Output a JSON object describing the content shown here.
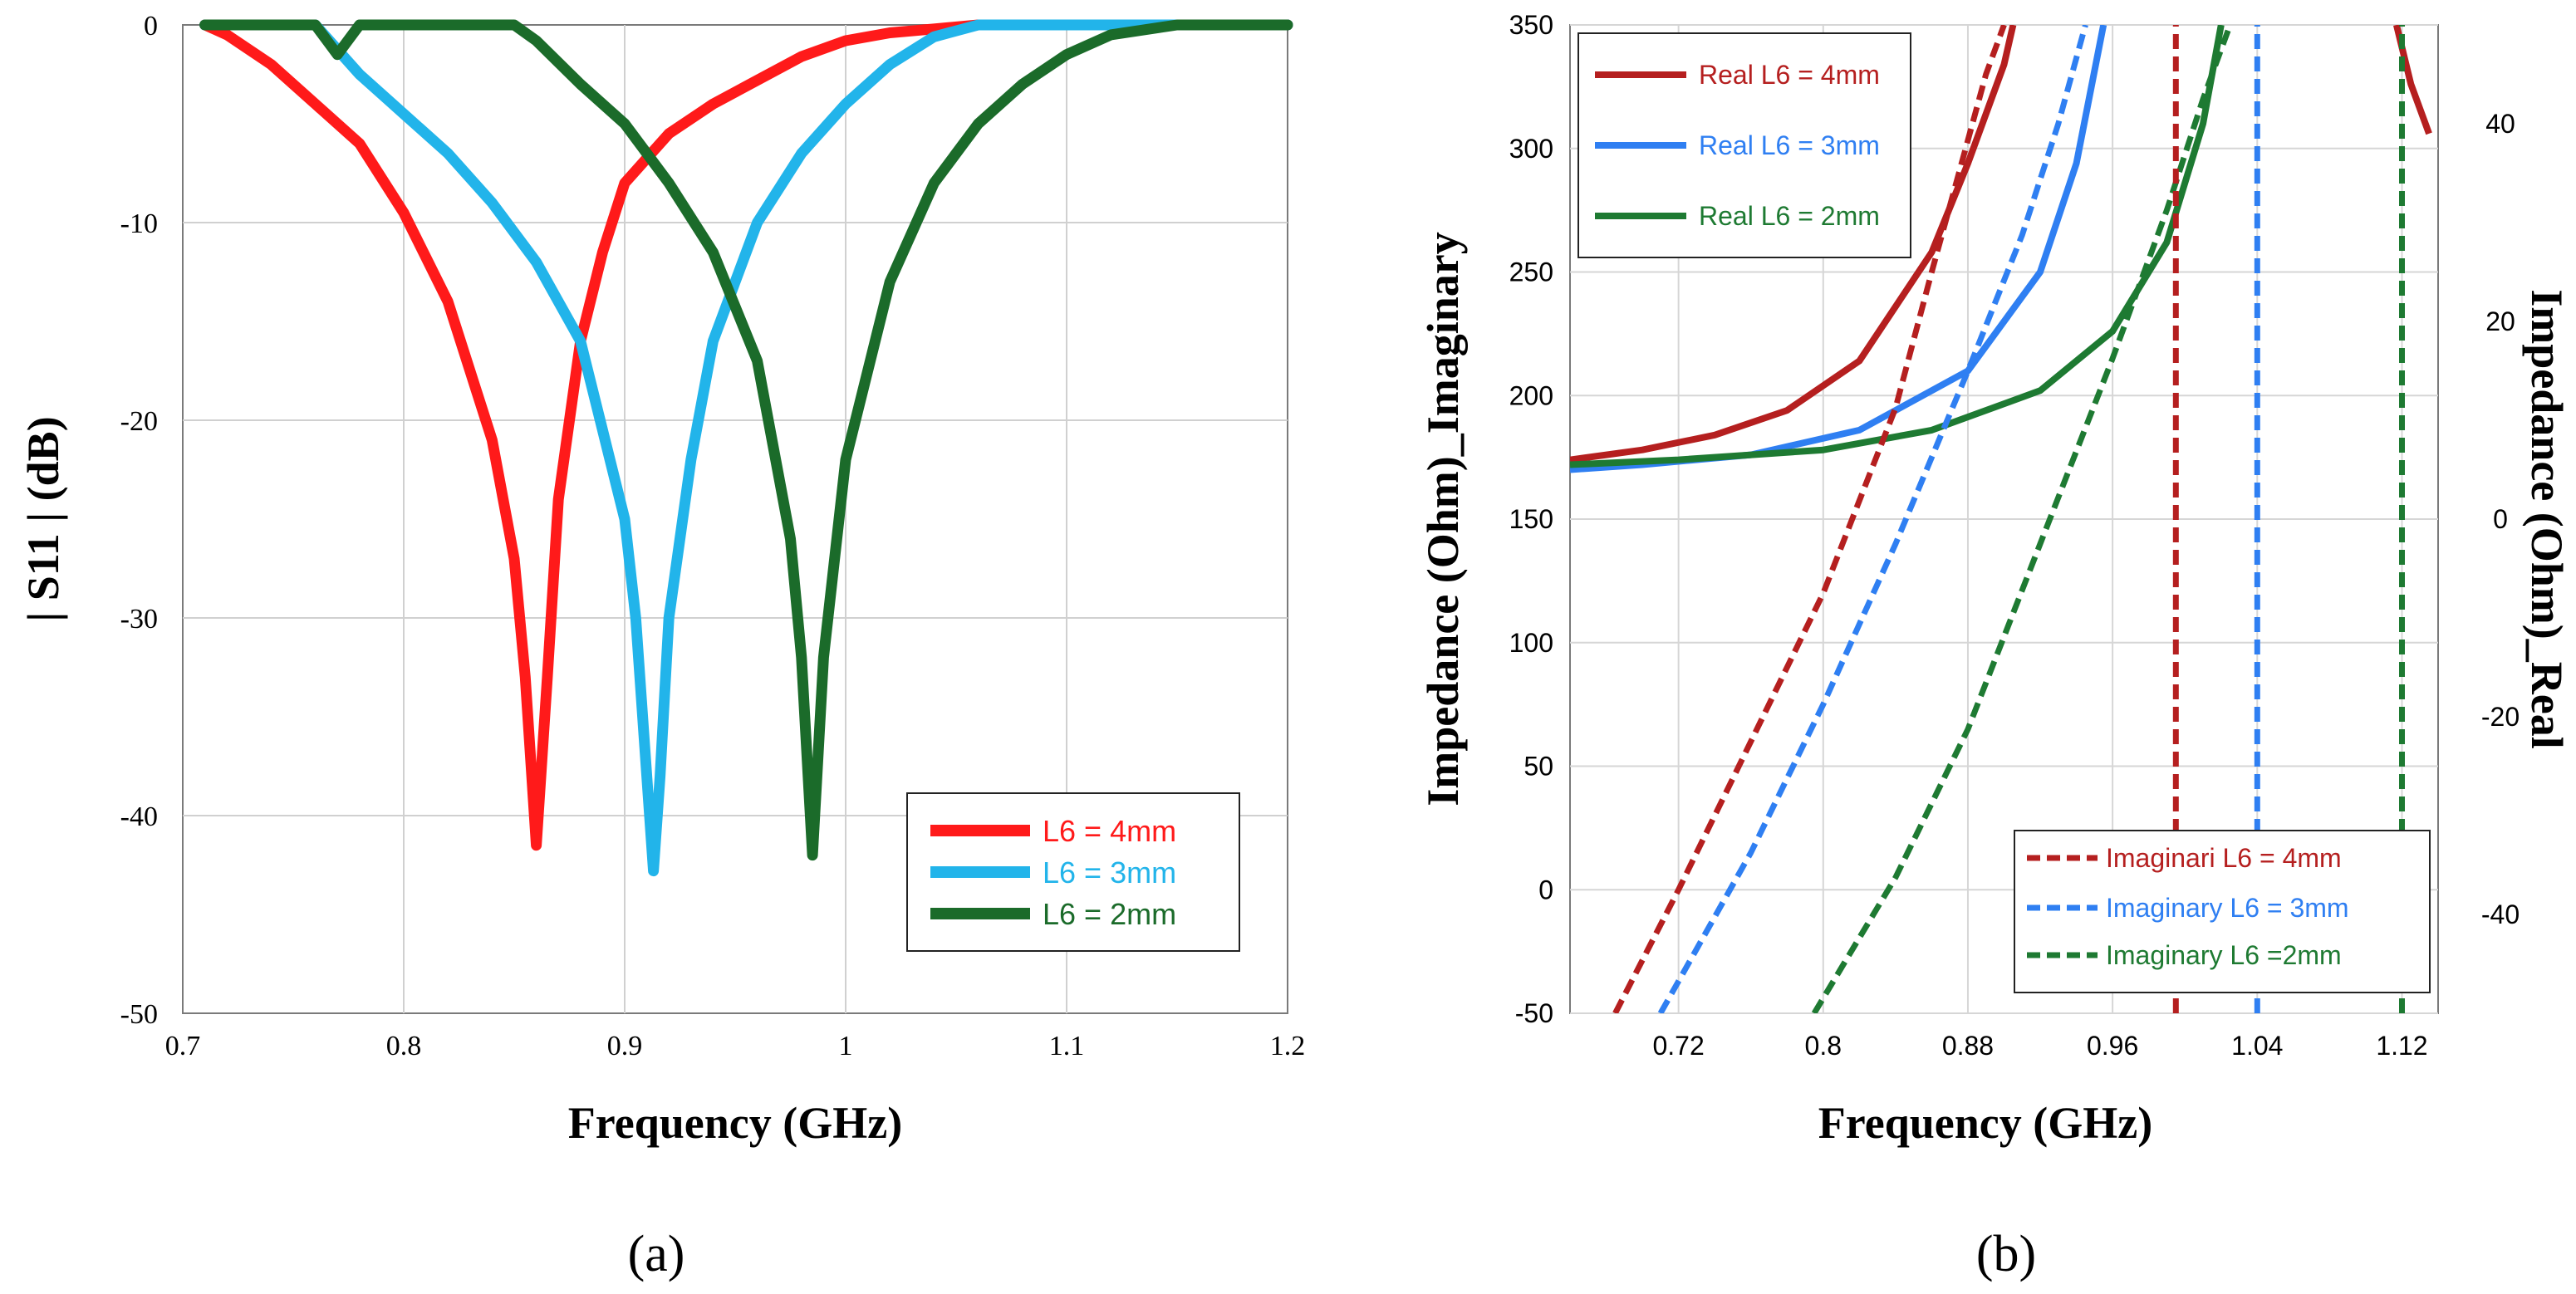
{
  "colors": {
    "red": "#ff1a1a",
    "lightblue": "#22b4ea",
    "darkgreen": "#1b6b2a",
    "darkred": "#b51f1f",
    "blue": "#2f7ff2",
    "green": "#1e7a32"
  },
  "chart_data": [
    {
      "type": "line",
      "panel_label": "(a)",
      "xlabel": "Frequency (GHz)",
      "ylabel": "| S11 | (dB)",
      "xlim": [
        0.7,
        1.2
      ],
      "ylim": [
        -50,
        0
      ],
      "xticks": [
        "0.7",
        "0.8",
        "0.9",
        "1",
        "1.1",
        "1.2"
      ],
      "yticks": [
        "0",
        "-10",
        "-20",
        "-30",
        "-40",
        "-50"
      ],
      "grid": true,
      "legend_position": "bottom-right",
      "series": [
        {
          "name": "L6 = 4mm",
          "color": "#ff1a1a",
          "x": [
            0.71,
            0.72,
            0.74,
            0.76,
            0.78,
            0.8,
            0.82,
            0.84,
            0.85,
            0.855,
            0.86,
            0.865,
            0.87,
            0.88,
            0.89,
            0.9,
            0.92,
            0.94,
            0.96,
            0.98,
            1.0,
            1.02,
            1.04,
            1.06,
            1.1,
            1.2
          ],
          "y": [
            0,
            -0.5,
            -2,
            -4,
            -6,
            -9.5,
            -14,
            -21,
            -27,
            -33,
            -41.5,
            -33,
            -24,
            -16,
            -11.5,
            -8,
            -5.5,
            -4,
            -2.8,
            -1.6,
            -0.8,
            -0.4,
            -0.2,
            0,
            0,
            0
          ]
        },
        {
          "name": "L6 = 3mm",
          "color": "#22b4ea",
          "x": [
            0.71,
            0.76,
            0.78,
            0.8,
            0.82,
            0.84,
            0.86,
            0.88,
            0.9,
            0.905,
            0.91,
            0.913,
            0.916,
            0.92,
            0.93,
            0.94,
            0.96,
            0.98,
            1.0,
            1.02,
            1.04,
            1.06,
            1.1,
            1.2
          ],
          "y": [
            0,
            0,
            -2.5,
            -4.5,
            -6.5,
            -9,
            -12,
            -16,
            -25,
            -30,
            -38,
            -42.8,
            -38,
            -30,
            -22,
            -16,
            -10,
            -6.5,
            -4,
            -2,
            -0.6,
            0,
            0,
            0
          ]
        },
        {
          "name": "L6 = 2mm",
          "color": "#1b6b2a",
          "x": [
            0.71,
            0.76,
            0.77,
            0.78,
            0.8,
            0.85,
            0.86,
            0.88,
            0.9,
            0.92,
            0.94,
            0.96,
            0.975,
            0.98,
            0.985,
            0.99,
            1.0,
            1.02,
            1.04,
            1.06,
            1.08,
            1.1,
            1.12,
            1.15,
            1.2
          ],
          "y": [
            0,
            0,
            -1.5,
            0,
            0,
            0,
            -0.8,
            -3,
            -5,
            -8,
            -11.5,
            -17,
            -26,
            -32,
            -42,
            -32,
            -22,
            -13,
            -8,
            -5,
            -3,
            -1.5,
            -0.5,
            0,
            0
          ]
        }
      ]
    },
    {
      "type": "line",
      "panel_label": "(b)",
      "xlabel": "Frequency (GHz)",
      "ylabel": "Impedance (Ohm)_Imaginary",
      "y2label": "Impedance (Ohm)_Real",
      "xlim": [
        0.66,
        1.14
      ],
      "ylim": [
        -50,
        350
      ],
      "y2lim": [
        -50,
        50
      ],
      "xticks": [
        "0.72",
        "0.8",
        "0.88",
        "0.96",
        "1.04",
        "1.12"
      ],
      "yticks": [
        "350",
        "300",
        "250",
        "200",
        "150",
        "100",
        "50",
        "0",
        "-50"
      ],
      "y2ticks": [
        "40",
        "20",
        "0",
        "-20",
        "-40"
      ],
      "grid": true,
      "legend_real_position": "top-left",
      "legend_imag_position": "bottom-right",
      "series": [
        {
          "name": "Real L6 = 4mm",
          "axis": "right",
          "dash": false,
          "color": "#b51f1f",
          "x": [
            0.66,
            0.7,
            0.74,
            0.78,
            0.82,
            0.86,
            0.88,
            0.9,
            0.905
          ],
          "y": [
            6,
            7,
            8.5,
            11,
            16,
            27,
            36,
            46,
            50
          ]
        },
        {
          "name": "Real L6 = 3mm",
          "axis": "right",
          "dash": false,
          "color": "#2f7ff2",
          "x": [
            0.66,
            0.7,
            0.76,
            0.82,
            0.88,
            0.92,
            0.94,
            0.955
          ],
          "y": [
            5,
            5.5,
            6.5,
            9,
            15,
            25,
            36,
            50
          ]
        },
        {
          "name": "Real L6 = 2mm",
          "axis": "right",
          "dash": false,
          "color": "#1e7a32",
          "x": [
            0.66,
            0.72,
            0.8,
            0.86,
            0.92,
            0.96,
            0.99,
            1.01,
            1.02
          ],
          "y": [
            5.5,
            6,
            7,
            9,
            13,
            19,
            28,
            40,
            50
          ]
        },
        {
          "name": "",
          "axis": "right",
          "dash": false,
          "color": "#b51f1f",
          "x": [
            1.117,
            1.125,
            1.135
          ],
          "y": [
            50,
            44,
            39
          ]
        },
        {
          "name": "Imaginari L6 = 4mm",
          "axis": "left",
          "dash": true,
          "color": "#b51f1f",
          "x": [
            0.685,
            0.72,
            0.76,
            0.8,
            0.84,
            0.86,
            0.875,
            0.89,
            0.9
          ],
          "y": [
            -50,
            0,
            60,
            120,
            195,
            250,
            290,
            330,
            350
          ]
        },
        {
          "name": "Imaginary L6 = 3mm",
          "axis": "left",
          "dash": true,
          "color": "#2f7ff2",
          "x": [
            0.71,
            0.76,
            0.8,
            0.84,
            0.88,
            0.91,
            0.93,
            0.945
          ],
          "y": [
            -50,
            15,
            75,
            140,
            210,
            265,
            310,
            350
          ]
        },
        {
          "name": "Imaginary L6 =2mm",
          "axis": "left",
          "dash": true,
          "color": "#1e7a32",
          "x": [
            0.795,
            0.84,
            0.88,
            0.92,
            0.96,
            0.99,
            1.01,
            1.025
          ],
          "y": [
            -50,
            5,
            65,
            140,
            215,
            275,
            320,
            350
          ]
        },
        {
          "name": "",
          "axis": "left",
          "dash": true,
          "color": "#b51f1f",
          "x": [
            0.995,
            0.995
          ],
          "y": [
            -50,
            350
          ]
        },
        {
          "name": "",
          "axis": "left",
          "dash": true,
          "color": "#2f7ff2",
          "x": [
            1.04,
            1.04
          ],
          "y": [
            -50,
            350
          ]
        },
        {
          "name": "",
          "axis": "left",
          "dash": true,
          "color": "#1e7a32",
          "x": [
            1.12,
            1.12
          ],
          "y": [
            -50,
            350
          ]
        }
      ]
    }
  ]
}
